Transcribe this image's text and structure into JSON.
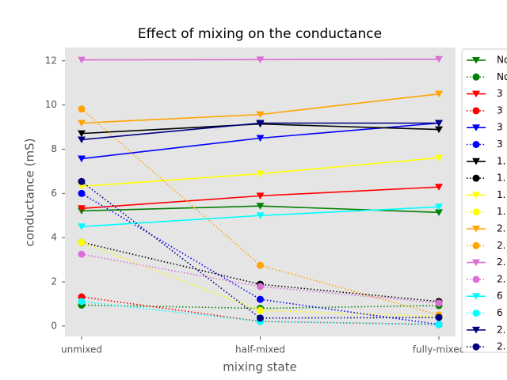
{
  "chart_data": {
    "type": "line",
    "title": "Effect of mixing on the conductance",
    "x_label": "mixing state",
    "y_label": "conductance (mS)",
    "categories": [
      "unmixed",
      "half-mixed",
      "fully-mixed"
    ],
    "ylim": [
      -0.47,
      12.6
    ],
    "yticks": [
      0,
      2,
      4,
      6,
      8,
      10,
      12
    ],
    "grid": false,
    "legend": "right",
    "series": [
      {
        "name": "No",
        "color": "#008000",
        "linestyle": "solid",
        "marker": "triangle",
        "values": [
          5.21,
          5.43,
          5.14
        ]
      },
      {
        "name": "No",
        "color": "#008000",
        "linestyle": "dotted",
        "marker": "circle",
        "values": [
          0.95,
          0.8,
          0.93
        ]
      },
      {
        "name": "3",
        "color": "#ff0000",
        "linestyle": "solid",
        "marker": "triangle",
        "values": [
          5.32,
          5.89,
          6.29
        ]
      },
      {
        "name": "3",
        "color": "#ff0000",
        "linestyle": "dotted",
        "marker": "circle",
        "values": [
          1.32,
          0.21,
          0.07
        ]
      },
      {
        "name": "3",
        "color": "#0000ff",
        "linestyle": "solid",
        "marker": "triangle",
        "values": [
          7.57,
          8.5,
          9.18
        ]
      },
      {
        "name": "3",
        "color": "#0000ff",
        "linestyle": "dotted",
        "marker": "circle",
        "values": [
          6.0,
          1.21,
          0.07
        ]
      },
      {
        "name": "1.",
        "color": "#000000",
        "linestyle": "solid",
        "marker": "triangle",
        "values": [
          8.71,
          9.14,
          8.89
        ]
      },
      {
        "name": "1.",
        "color": "#000000",
        "linestyle": "dotted",
        "marker": "circle",
        "values": [
          3.79,
          1.89,
          1.11
        ]
      },
      {
        "name": "1.",
        "color": "#ffff00",
        "linestyle": "solid",
        "marker": "triangle",
        "values": [
          6.32,
          6.89,
          7.61
        ]
      },
      {
        "name": "1.",
        "color": "#ffff00",
        "linestyle": "dotted",
        "marker": "circle",
        "values": [
          3.79,
          0.71,
          0.43
        ]
      },
      {
        "name": "2.",
        "color": "#ffa500",
        "linestyle": "solid",
        "marker": "triangle",
        "values": [
          9.18,
          9.57,
          10.5
        ]
      },
      {
        "name": "2.",
        "color": "#ffa500",
        "linestyle": "dotted",
        "marker": "circle",
        "values": [
          9.82,
          2.75,
          0.5
        ]
      },
      {
        "name": "2.",
        "color": "#da70d6",
        "linestyle": "solid",
        "marker": "triangle",
        "values": [
          12.04,
          12.05,
          12.07
        ]
      },
      {
        "name": "2.",
        "color": "#da70d6",
        "linestyle": "dotted",
        "marker": "circle",
        "values": [
          3.25,
          1.79,
          1.04
        ]
      },
      {
        "name": "6",
        "color": "#00ffff",
        "linestyle": "solid",
        "marker": "triangle",
        "values": [
          4.5,
          5.0,
          5.39
        ]
      },
      {
        "name": "6",
        "color": "#00ffff",
        "linestyle": "dotted",
        "marker": "circle",
        "values": [
          1.11,
          0.21,
          0.07
        ]
      },
      {
        "name": "2.",
        "color": "#000080",
        "linestyle": "solid",
        "marker": "triangle",
        "values": [
          8.43,
          9.18,
          9.18
        ]
      },
      {
        "name": "2.",
        "color": "#000080",
        "linestyle": "dotted",
        "marker": "circle",
        "values": [
          6.54,
          0.36,
          0.39
        ]
      }
    ]
  }
}
